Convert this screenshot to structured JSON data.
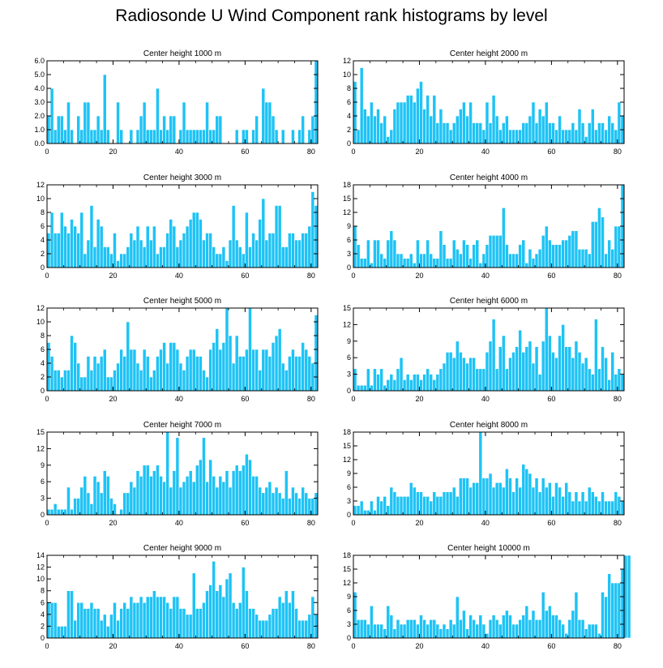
{
  "title": "Radiosonde U Wind Component rank histograms by level",
  "colors": {
    "bar": "#1ec3f5",
    "bar_edge": "#ffffff",
    "axis": "#000000",
    "background": "#ffffff"
  },
  "chart_data": [
    {
      "type": "bar",
      "title": "Center height 1000 m",
      "xlim": [
        0,
        82
      ],
      "ylim": [
        0,
        6
      ],
      "xticks": [
        0,
        20,
        40,
        60,
        80
      ],
      "yticks": [
        "0.0",
        "1.0",
        "2.0",
        "3.0",
        "4.0",
        "5.0",
        "6.0"
      ],
      "values": [
        2,
        4,
        1,
        2,
        2,
        1,
        3,
        1,
        0,
        2,
        1,
        3,
        3,
        1,
        1,
        2,
        1,
        5,
        1,
        0,
        0,
        3,
        1,
        0,
        0,
        1,
        0,
        1,
        2,
        3,
        1,
        1,
        1,
        4,
        1,
        2,
        1,
        2,
        2,
        0,
        1,
        3,
        1,
        1,
        1,
        1,
        1,
        1,
        3,
        1,
        1,
        2,
        2,
        0,
        0,
        0,
        0,
        1,
        0,
        1,
        1,
        0,
        1,
        2,
        0,
        4,
        3,
        3,
        2,
        1,
        0,
        1,
        0,
        0,
        1,
        0,
        1,
        2,
        0,
        1,
        2,
        6
      ]
    },
    {
      "type": "bar",
      "title": "Center height 2000 m",
      "xlim": [
        0,
        82
      ],
      "ylim": [
        0,
        12
      ],
      "xticks": [
        0,
        20,
        40,
        60,
        80
      ],
      "yticks": [
        "0",
        "2",
        "4",
        "6",
        "8",
        "10",
        "12"
      ],
      "values": [
        9,
        2,
        11,
        5,
        4,
        6,
        4,
        5,
        3,
        4,
        1,
        2,
        5,
        6,
        6,
        6,
        7,
        7,
        6,
        8,
        9,
        5,
        7,
        4,
        7,
        3,
        5,
        3,
        3,
        2,
        3,
        4,
        5,
        6,
        4,
        6,
        3,
        3,
        3,
        2,
        6,
        3,
        7,
        4,
        2,
        3,
        4,
        2,
        2,
        2,
        2,
        3,
        3,
        4,
        6,
        3,
        5,
        4,
        6,
        3,
        3,
        2,
        4,
        2,
        2,
        2,
        3,
        2,
        5,
        3,
        1,
        3,
        5,
        2,
        3,
        3,
        2,
        4,
        3,
        2,
        6,
        4
      ]
    },
    {
      "type": "bar",
      "title": "Center height 3000 m",
      "xlim": [
        0,
        82
      ],
      "ylim": [
        0,
        12
      ],
      "xticks": [
        0,
        20,
        40,
        60,
        80
      ],
      "yticks": [
        "0",
        "2",
        "4",
        "6",
        "8",
        "10",
        "12"
      ],
      "values": [
        5,
        8,
        5,
        5,
        8,
        6,
        5,
        7,
        6,
        5,
        8,
        2,
        4,
        9,
        3,
        7,
        6,
        3,
        3,
        2,
        5,
        1,
        2,
        2,
        3,
        5,
        4,
        6,
        4,
        3,
        6,
        4,
        6,
        2,
        3,
        3,
        5,
        7,
        6,
        3,
        4,
        5,
        6,
        7,
        8,
        8,
        7,
        4,
        5,
        5,
        3,
        2,
        2,
        3,
        1,
        4,
        9,
        4,
        3,
        2,
        8,
        3,
        5,
        4,
        7,
        10,
        4,
        5,
        5,
        9,
        9,
        3,
        3,
        5,
        5,
        4,
        4,
        5,
        5,
        6,
        11,
        9
      ]
    },
    {
      "type": "bar",
      "title": "Center height 4000 m",
      "xlim": [
        0,
        82
      ],
      "ylim": [
        0,
        18
      ],
      "xticks": [
        0,
        20,
        40,
        60,
        80
      ],
      "yticks": [
        "0",
        "3",
        "6",
        "9",
        "12",
        "15",
        "18"
      ],
      "values": [
        9,
        5,
        2,
        2,
        6,
        1,
        6,
        6,
        3,
        2,
        6,
        8,
        6,
        3,
        3,
        2,
        2,
        3,
        1,
        6,
        3,
        3,
        6,
        3,
        2,
        2,
        8,
        5,
        2,
        2,
        6,
        4,
        3,
        6,
        5,
        2,
        5,
        6,
        1,
        3,
        5,
        7,
        7,
        7,
        7,
        13,
        5,
        3,
        3,
        3,
        5,
        6,
        1,
        4,
        2,
        3,
        4,
        7,
        9,
        6,
        5,
        5,
        5,
        6,
        6,
        7,
        8,
        8,
        4,
        4,
        4,
        3,
        10,
        10,
        13,
        11,
        3,
        6,
        4,
        9,
        9,
        18
      ]
    },
    {
      "type": "bar",
      "title": "Center height 5000 m",
      "xlim": [
        0,
        82
      ],
      "ylim": [
        0,
        12
      ],
      "xticks": [
        0,
        20,
        40,
        60,
        80
      ],
      "yticks": [
        "0",
        "2",
        "4",
        "6",
        "8",
        "10",
        "12"
      ],
      "values": [
        7,
        5,
        3,
        3,
        2,
        3,
        3,
        8,
        7,
        4,
        2,
        2,
        5,
        3,
        5,
        4,
        5,
        6,
        2,
        2,
        3,
        4,
        6,
        5,
        10,
        6,
        6,
        4,
        3,
        6,
        5,
        2,
        3,
        5,
        6,
        7,
        4,
        7,
        7,
        6,
        4,
        3,
        5,
        6,
        6,
        5,
        5,
        3,
        2,
        6,
        7,
        9,
        6,
        7,
        12,
        8,
        4,
        8,
        5,
        5,
        6,
        12,
        6,
        6,
        3,
        6,
        6,
        5,
        7,
        8,
        9,
        4,
        3,
        5,
        6,
        5,
        5,
        7,
        6,
        5,
        4,
        11
      ]
    },
    {
      "type": "bar",
      "title": "Center height 6000 m",
      "xlim": [
        0,
        82
      ],
      "ylim": [
        0,
        15
      ],
      "xticks": [
        0,
        20,
        40,
        60,
        80
      ],
      "yticks": [
        "0",
        "3",
        "6",
        "9",
        "12",
        "15"
      ],
      "values": [
        4,
        1,
        1,
        1,
        4,
        1,
        4,
        3,
        4,
        1,
        2,
        3,
        2,
        4,
        6,
        2,
        3,
        2,
        3,
        3,
        2,
        3,
        4,
        3,
        2,
        3,
        4,
        5,
        7,
        7,
        6,
        9,
        7,
        6,
        5,
        6,
        6,
        4,
        4,
        4,
        7,
        9,
        13,
        4,
        8,
        10,
        4,
        6,
        7,
        8,
        11,
        7,
        8,
        9,
        5,
        8,
        3,
        9,
        15,
        10,
        7,
        6,
        10,
        12,
        8,
        8,
        6,
        9,
        7,
        5,
        6,
        4,
        3,
        13,
        4,
        8,
        6,
        2,
        7,
        3,
        4,
        3
      ]
    },
    {
      "type": "bar",
      "title": "Center height 7000 m",
      "xlim": [
        0,
        82
      ],
      "ylim": [
        0,
        15
      ],
      "xticks": [
        0,
        20,
        40,
        60,
        80
      ],
      "yticks": [
        "0",
        "3",
        "6",
        "9",
        "12",
        "15"
      ],
      "values": [
        1,
        1,
        2,
        1,
        1,
        1,
        5,
        1,
        3,
        3,
        5,
        7,
        4,
        2,
        7,
        6,
        4,
        8,
        7,
        3,
        2,
        0,
        1,
        4,
        4,
        6,
        5,
        8,
        7,
        9,
        9,
        7,
        8,
        9,
        7,
        6,
        15,
        5,
        8,
        14,
        5,
        6,
        7,
        8,
        6,
        9,
        10,
        14,
        6,
        10,
        7,
        5,
        7,
        6,
        8,
        5,
        8,
        9,
        8,
        9,
        11,
        10,
        7,
        7,
        5,
        4,
        5,
        6,
        4,
        5,
        4,
        3,
        8,
        3,
        5,
        4,
        3,
        5,
        4,
        3,
        3,
        4
      ]
    },
    {
      "type": "bar",
      "title": "Center height 8000 m",
      "xlim": [
        0,
        82
      ],
      "ylim": [
        0,
        18
      ],
      "xticks": [
        0,
        20,
        40,
        60,
        80
      ],
      "yticks": [
        "0",
        "3",
        "6",
        "9",
        "12",
        "15",
        "18"
      ],
      "values": [
        2,
        2,
        3,
        1,
        1,
        3,
        1,
        4,
        3,
        4,
        2,
        6,
        5,
        4,
        4,
        4,
        4,
        7,
        6,
        5,
        5,
        4,
        4,
        3,
        5,
        4,
        4,
        5,
        5,
        5,
        6,
        4,
        8,
        8,
        8,
        6,
        7,
        7,
        18,
        8,
        8,
        9,
        6,
        7,
        7,
        6,
        10,
        8,
        5,
        8,
        6,
        11,
        10,
        9,
        6,
        8,
        5,
        8,
        6,
        7,
        4,
        7,
        6,
        4,
        7,
        5,
        3,
        5,
        3,
        5,
        3,
        6,
        5,
        4,
        3,
        5,
        3,
        3,
        3,
        5,
        4,
        3
      ]
    },
    {
      "type": "bar",
      "title": "Center height 9000 m",
      "xlim": [
        0,
        82
      ],
      "ylim": [
        0,
        14
      ],
      "xticks": [
        0,
        20,
        40,
        60,
        80
      ],
      "yticks": [
        "0",
        "2",
        "4",
        "6",
        "8",
        "10",
        "12",
        "14"
      ],
      "values": [
        6,
        6,
        6,
        2,
        2,
        2,
        8,
        8,
        3,
        6,
        6,
        5,
        5,
        6,
        5,
        5,
        3,
        4,
        2,
        4,
        6,
        3,
        5,
        6,
        5,
        7,
        6,
        6,
        7,
        6,
        7,
        7,
        8,
        7,
        7,
        7,
        6,
        5,
        7,
        7,
        5,
        5,
        4,
        4,
        11,
        5,
        5,
        6,
        8,
        9,
        13,
        8,
        9,
        7,
        10,
        11,
        6,
        5,
        6,
        12,
        8,
        5,
        5,
        4,
        3,
        3,
        3,
        4,
        5,
        5,
        7,
        6,
        8,
        6,
        8,
        5,
        3,
        3,
        3,
        4,
        7,
        4
      ]
    },
    {
      "type": "bar",
      "title": "Center height 10000 m",
      "xlim": [
        0,
        82
      ],
      "ylim": [
        0,
        18
      ],
      "xticks": [
        0,
        20,
        40,
        60,
        80
      ],
      "yticks": [
        "0",
        "3",
        "6",
        "9",
        "12",
        "15",
        "18"
      ],
      "values": [
        10,
        4,
        4,
        4,
        3,
        7,
        3,
        3,
        3,
        2,
        7,
        5,
        2,
        4,
        3,
        3,
        4,
        4,
        4,
        3,
        5,
        4,
        3,
        4,
        4,
        3,
        2,
        3,
        2,
        4,
        3,
        9,
        4,
        6,
        2,
        5,
        4,
        3,
        5,
        3,
        1,
        4,
        5,
        4,
        3,
        5,
        6,
        5,
        3,
        3,
        4,
        5,
        7,
        4,
        6,
        4,
        4,
        10,
        6,
        7,
        5,
        5,
        4,
        3,
        1,
        4,
        6,
        10,
        4,
        4,
        2,
        3,
        3,
        3,
        1,
        10,
        9,
        14,
        12,
        12,
        12,
        15,
        18,
        18
      ]
    }
  ]
}
